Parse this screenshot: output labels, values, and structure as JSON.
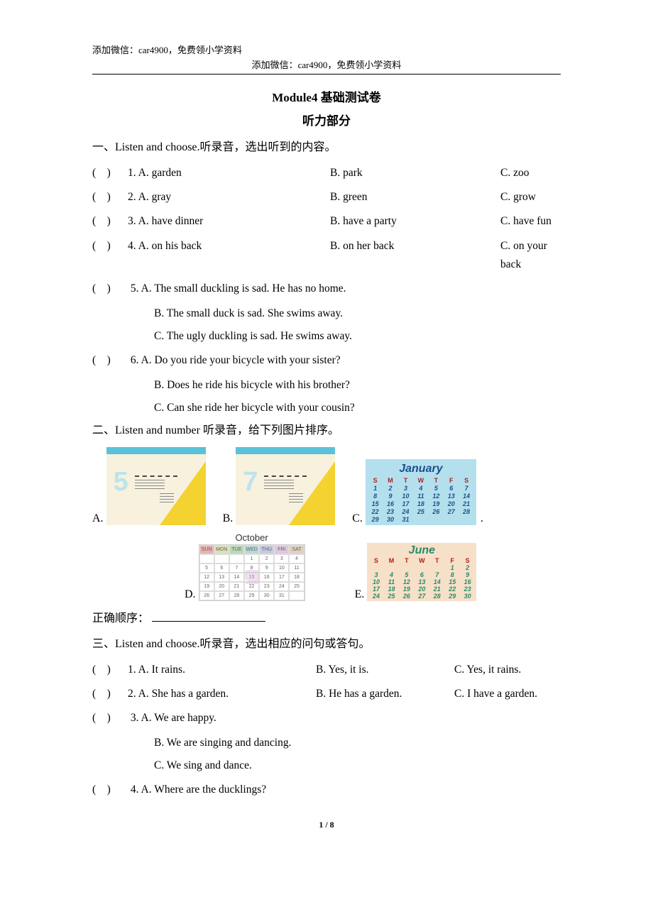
{
  "header": {
    "left": "添加微信：car4900，免费领小学资料",
    "center": "添加微信：car4900，免费领小学资料"
  },
  "title": "Module4  基础测试卷",
  "subtitle": "听力部分",
  "section1": {
    "head": "一、Listen and choose.听录音，选出听到的内容。",
    "items": [
      {
        "n": "1",
        "a": "A. garden",
        "b": "B. park",
        "c": "C. zoo"
      },
      {
        "n": "2",
        "a": "A. gray",
        "b": "B. green",
        "c": "C. grow"
      },
      {
        "n": "3",
        "a": "A. have dinner",
        "b": "B. have a party",
        "c": "C. have fun"
      },
      {
        "n": "4",
        "a": "A. on his back",
        "b": "B. on her back",
        "c": "C. on your back"
      }
    ],
    "item5": {
      "n": "5",
      "a": "A. The small duckling is sad. He has no home.",
      "b": "B. The small duck is sad. She swims away.",
      "c": "C. The ugly duckling is sad. He swims away."
    },
    "item6": {
      "n": "6",
      "a": "A. Do you ride your bicycle with your sister?",
      "b": "B. Does he ride his bicycle with his brother?",
      "c": "C. Can she ride her bicycle with your cousin?"
    }
  },
  "section2": {
    "head": "二、Listen and number 听录音，给下列图片排序。",
    "order_label": "正确顺序：",
    "labels": {
      "a": "A.",
      "b": "B.",
      "c": "C.",
      "d": "D.",
      "e": "E.",
      "dot": "."
    },
    "calendars": {
      "a_big": "5",
      "b_big": "7",
      "jan": {
        "title": "January",
        "days": [
          "S",
          "M",
          "T",
          "W",
          "T",
          "F",
          "S"
        ],
        "rows": [
          [
            "1",
            "2",
            "3",
            "4",
            "5",
            "6",
            "7"
          ],
          [
            "8",
            "9",
            "10",
            "11",
            "12",
            "13",
            "14"
          ],
          [
            "15",
            "16",
            "17",
            "18",
            "19",
            "20",
            "21"
          ],
          [
            "22",
            "23",
            "24",
            "25",
            "26",
            "27",
            "28"
          ],
          [
            "29",
            "30",
            "31",
            "",
            "",
            "",
            ""
          ]
        ]
      },
      "oct": {
        "title": "October",
        "days": [
          "SUN",
          "MON",
          "TUE",
          "WED",
          "THU",
          "FRI",
          "SAT"
        ],
        "rows": [
          [
            "",
            "",
            "",
            "1",
            "2",
            "3",
            "4"
          ],
          [
            "5",
            "6",
            "7",
            "8",
            "9",
            "10",
            "11"
          ],
          [
            "12",
            "13",
            "14",
            "15",
            "16",
            "17",
            "18"
          ],
          [
            "19",
            "20",
            "21",
            "22",
            "23",
            "24",
            "25"
          ],
          [
            "26",
            "27",
            "28",
            "29",
            "30",
            "31",
            ""
          ]
        ]
      },
      "june": {
        "title": "June",
        "days": [
          "S",
          "M",
          "T",
          "W",
          "T",
          "F",
          "S"
        ],
        "rows": [
          [
            "",
            "",
            "",
            "",
            "",
            "1",
            "2"
          ],
          [
            "3",
            "4",
            "5",
            "6",
            "7",
            "8",
            "9"
          ],
          [
            "10",
            "11",
            "12",
            "13",
            "14",
            "15",
            "16"
          ],
          [
            "17",
            "18",
            "19",
            "20",
            "21",
            "22",
            "23"
          ],
          [
            "24",
            "25",
            "26",
            "27",
            "28",
            "29",
            "30"
          ]
        ]
      }
    }
  },
  "section3": {
    "head": "三、Listen and choose.听录音，选出相应的问句或答句。",
    "items12": [
      {
        "n": "1",
        "a": "A. It rains.",
        "b": "B. Yes, it is.",
        "c": "C. Yes, it rains."
      },
      {
        "n": "2",
        "a": "A. She has a garden.",
        "b": "B. He has a garden.",
        "c": "C. I have a garden."
      }
    ],
    "item3": {
      "n": "3",
      "a": "A. We are happy.",
      "b": "B. We are singing and dancing.",
      "c": "C. We sing and dance."
    },
    "item4": {
      "n": "4",
      "a": "A. Where are the ducklings?"
    }
  },
  "footer": "1 / 8"
}
